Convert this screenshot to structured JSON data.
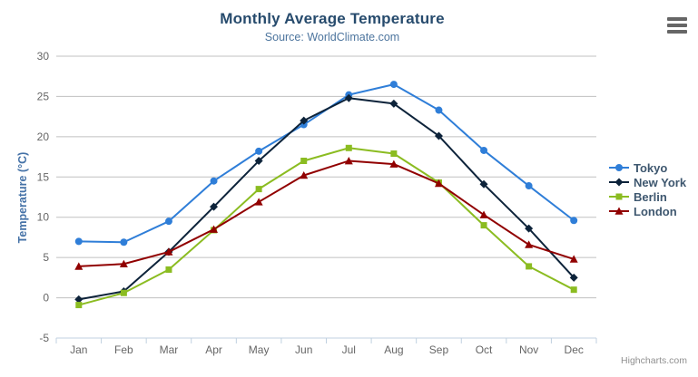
{
  "chart_data": {
    "type": "line",
    "title": "Monthly Average Temperature",
    "subtitle": "Source: WorldClimate.com",
    "categories": [
      "Jan",
      "Feb",
      "Mar",
      "Apr",
      "May",
      "Jun",
      "Jul",
      "Aug",
      "Sep",
      "Oct",
      "Nov",
      "Dec"
    ],
    "xlabel": "",
    "ylabel": "Temperature (°C)",
    "ylim": [
      -5,
      30
    ],
    "yticks": [
      -5,
      0,
      5,
      10,
      15,
      20,
      25,
      30
    ],
    "grid": true,
    "legend_position": "right",
    "series": [
      {
        "name": "Tokyo",
        "marker": "circle",
        "color": "#2f7ed8",
        "values": [
          7.0,
          6.9,
          9.5,
          14.5,
          18.2,
          21.5,
          25.2,
          26.5,
          23.3,
          18.3,
          13.9,
          9.6
        ]
      },
      {
        "name": "New York",
        "marker": "diamond",
        "color": "#0d233a",
        "values": [
          -0.2,
          0.8,
          5.7,
          11.3,
          17.0,
          22.0,
          24.8,
          24.1,
          20.1,
          14.1,
          8.6,
          2.5
        ]
      },
      {
        "name": "Berlin",
        "marker": "square",
        "color": "#8bbc21",
        "values": [
          -0.9,
          0.6,
          3.5,
          8.4,
          13.5,
          17.0,
          18.6,
          17.9,
          14.3,
          9.0,
          3.9,
          1.0
        ]
      },
      {
        "name": "London",
        "marker": "triangle",
        "color": "#910000",
        "values": [
          3.9,
          4.2,
          5.7,
          8.5,
          11.9,
          15.2,
          17.0,
          16.6,
          14.2,
          10.3,
          6.6,
          4.8
        ]
      }
    ]
  },
  "toolbar": {
    "export_menu_icon": "hamburger-icon"
  },
  "credits": {
    "label": "Highcharts.com"
  },
  "theme": {
    "title_color": "#274b6d",
    "subtitle_color": "#4d759e",
    "axis_title_color": "#4572a7",
    "axis_label_color": "#666666",
    "grid_color": "#c0c0c0",
    "axis_line_color": "#c0d0e0",
    "legend_text_color": "#3e576f",
    "credits_color": "#909090",
    "background_color": "#ffffff"
  }
}
